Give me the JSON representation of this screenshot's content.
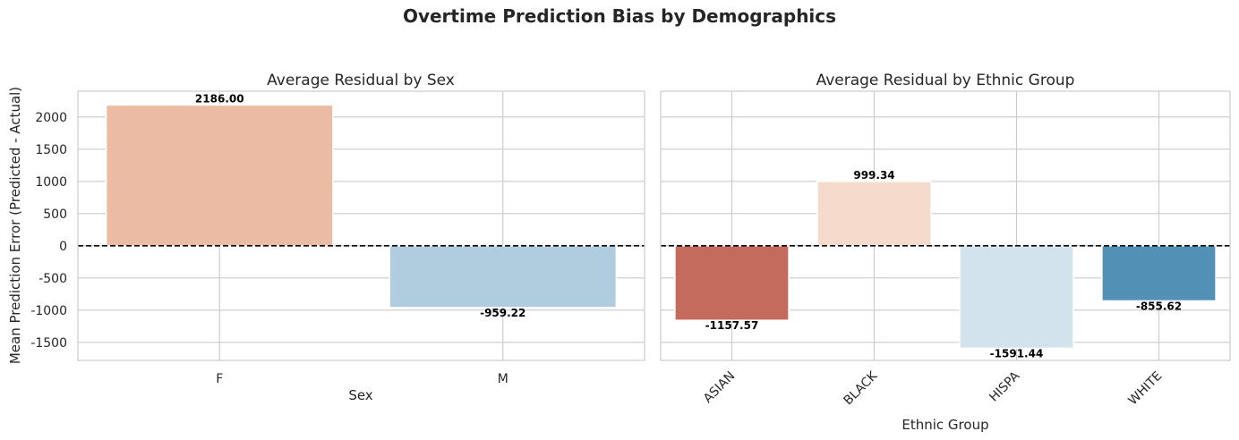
{
  "figure_title": "Overtime Prediction Bias by Demographics",
  "chart_data": [
    {
      "type": "bar",
      "title": "Average Residual by Sex",
      "xlabel": "Sex",
      "ylabel": "Mean Prediction Error (Predicted - Actual)",
      "categories": [
        "F",
        "M"
      ],
      "values": [
        2186.0,
        -959.22
      ],
      "value_labels": [
        "2186.00",
        "-959.22"
      ],
      "colors": [
        "#ebbba4",
        "#b0cde0"
      ],
      "ylim": [
        -1780,
        2400
      ],
      "yticks": [
        -1500,
        -1000,
        -500,
        0,
        500,
        1000,
        1500,
        2000
      ],
      "reference_line": 0,
      "grid": true,
      "xtick_rotation": 0
    },
    {
      "type": "bar",
      "title": "Average Residual by Ethnic Group",
      "xlabel": "Ethnic Group",
      "ylabel": "",
      "categories": [
        "ASIAN",
        "BLACK",
        "HISPA",
        "WHITE"
      ],
      "values": [
        -1157.57,
        999.34,
        -1591.44,
        -855.62
      ],
      "value_labels": [
        "-1157.57",
        "999.34",
        "-1591.44",
        "-855.62"
      ],
      "colors": [
        "#c56b5e",
        "#f6dbcd",
        "#d3e3ee",
        "#5390b5"
      ],
      "ylim": [
        -1780,
        2400
      ],
      "reference_line": 0,
      "grid": true,
      "sharey": true,
      "xtick_rotation": 45
    }
  ]
}
